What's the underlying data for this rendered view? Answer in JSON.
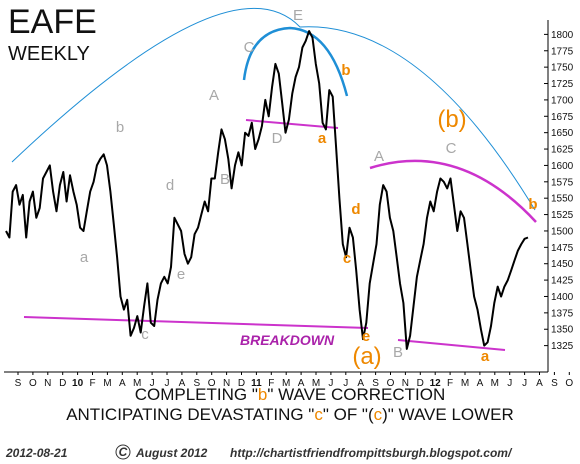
{
  "chart_data": {
    "type": "line",
    "title": "EAFE",
    "subtitle": "WEEKLY",
    "ylim": [
      1300,
      1820
    ],
    "y_ticks": [
      1325,
      1350,
      1375,
      1400,
      1425,
      1450,
      1475,
      1500,
      1525,
      1550,
      1575,
      1600,
      1625,
      1650,
      1675,
      1700,
      1725,
      1750,
      1775,
      1800
    ],
    "x_month_labels": [
      "S",
      "O",
      "N",
      "D",
      "10",
      "F",
      "M",
      "A",
      "M",
      "J",
      "J",
      "A",
      "S",
      "O",
      "N",
      "D",
      "11",
      "F",
      "M",
      "A",
      "M",
      "J",
      "J",
      "A",
      "S",
      "O",
      "N",
      "D",
      "12",
      "F",
      "M",
      "A",
      "M",
      "J",
      "J",
      "A",
      "S",
      "O"
    ],
    "x_bold_labels": [
      "10",
      "11",
      "12"
    ],
    "series": [
      {
        "values": [
          1500,
          1490,
          1560,
          1570,
          1540,
          1555,
          1490,
          1545,
          1560,
          1520,
          1535,
          1580,
          1590,
          1600,
          1560,
          1530,
          1570,
          1590,
          1545,
          1585,
          1560,
          1540,
          1505,
          1500,
          1530,
          1560,
          1575,
          1600,
          1610,
          1617,
          1600,
          1560,
          1510,
          1460,
          1400,
          1380,
          1395,
          1340,
          1352,
          1370,
          1345,
          1385,
          1420,
          1360,
          1355,
          1395,
          1420,
          1430,
          1420,
          1445,
          1520,
          1510,
          1500,
          1465,
          1450,
          1460,
          1495,
          1505,
          1525,
          1545,
          1530,
          1580,
          1580,
          1620,
          1655,
          1640,
          1610,
          1565,
          1600,
          1620,
          1600,
          1650,
          1645,
          1665,
          1625,
          1640,
          1660,
          1700,
          1675,
          1720,
          1755,
          1740,
          1695,
          1650,
          1670,
          1710,
          1735,
          1750,
          1780,
          1790,
          1805,
          1795,
          1755,
          1725,
          1665,
          1655,
          1715,
          1705,
          1630,
          1550,
          1480,
          1460,
          1505,
          1490,
          1440,
          1380,
          1335,
          1360,
          1420,
          1450,
          1480,
          1540,
          1570,
          1560,
          1520,
          1500,
          1460,
          1420,
          1390,
          1320,
          1340,
          1385,
          1430,
          1455,
          1480,
          1520,
          1545,
          1530,
          1560,
          1580,
          1575,
          1565,
          1580,
          1540,
          1500,
          1530,
          1520,
          1480,
          1440,
          1400,
          1380,
          1350,
          1325,
          1330,
          1355,
          1390,
          1415,
          1400,
          1415,
          1425,
          1440,
          1455,
          1470,
          1480,
          1488,
          1490
        ]
      }
    ],
    "labels": {
      "gray": [
        {
          "text": "b"
        },
        {
          "text": "a"
        },
        {
          "text": "c"
        },
        {
          "text": "d"
        },
        {
          "text": "e"
        },
        {
          "text": "A"
        },
        {
          "text": "B"
        },
        {
          "text": "C"
        },
        {
          "text": "D"
        },
        {
          "text": "E"
        },
        {
          "text": "A"
        },
        {
          "text": "B"
        },
        {
          "text": "C"
        }
      ],
      "orange": [
        {
          "text": "b"
        },
        {
          "text": "a"
        },
        {
          "text": "d"
        },
        {
          "text": "c"
        },
        {
          "text": "e"
        },
        {
          "text": "(a)"
        },
        {
          "text": "(b)"
        },
        {
          "text": "a"
        },
        {
          "text": "b"
        }
      ]
    },
    "breakdown_label": "BREAKDOWN",
    "footer": {
      "line1_pre": "COMPLETING \"",
      "line1_hl": "b",
      "line1_post": "\" WAVE CORRECTION",
      "line2_pre": "ANTICIPATING DEVASTATING \"",
      "line2_hl1": "c",
      "line2_mid": "\" OF \"(",
      "line2_hl2": "c",
      "line2_post": ")\" WAVE LOWER"
    },
    "credits": {
      "date": "2012-08-21",
      "copyright_symbol": "C",
      "copyright_text": "August 2012",
      "url": "http://chartistfriendfrompittsburgh.blogspot.com/"
    },
    "colors": {
      "price": "#000000",
      "arc": "#1f8fd6",
      "trendline": "#cc33cc",
      "gray_label": "#a8a8a8",
      "orange_label": "#ee8800",
      "breakdown_text": "#aa22aa"
    }
  }
}
